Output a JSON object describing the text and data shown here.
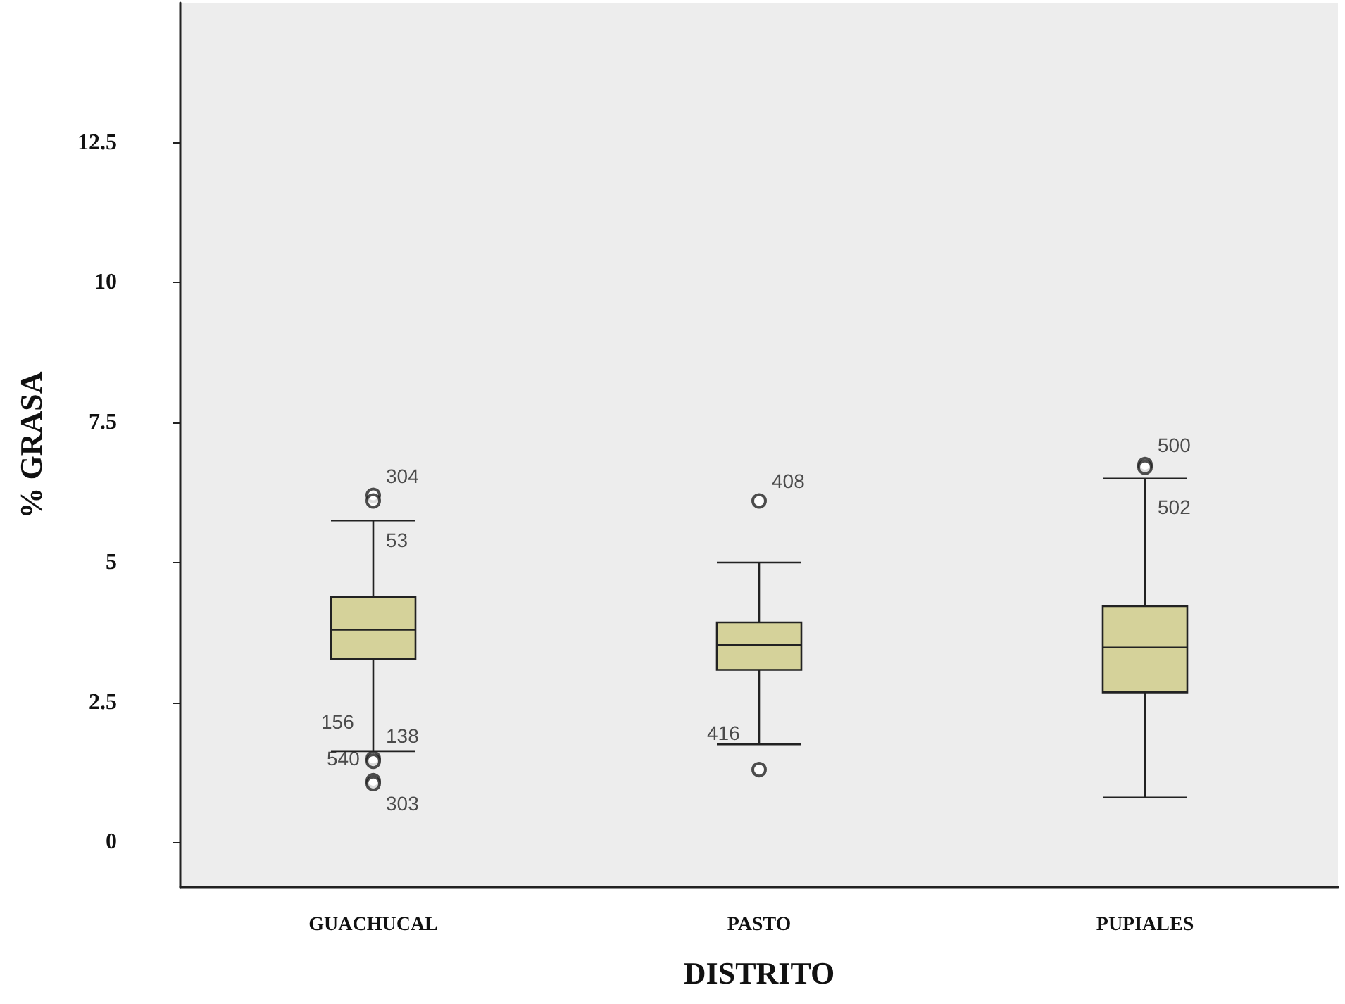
{
  "chart_data": {
    "type": "box",
    "xlabel": "DISTRITO",
    "ylabel": "% GRASA",
    "categories": [
      "GUACHUCAL",
      "PASTO",
      "PUPIALES"
    ],
    "color": "#d5d29a",
    "boxes": [
      {
        "low": 1.63,
        "q1": 3.28,
        "median": 3.8,
        "q3": 4.38,
        "high": 5.75,
        "outliers": [
          6.2,
          6.1,
          1.5,
          1.45,
          1.1,
          1.05
        ]
      },
      {
        "low": 1.75,
        "q1": 3.08,
        "median": 3.53,
        "q3": 3.93,
        "high": 5.0,
        "outliers": [
          6.1,
          1.3
        ]
      },
      {
        "low": 0.8,
        "q1": 2.68,
        "median": 3.48,
        "q3": 4.22,
        "high": 6.5,
        "outliers": [
          6.75,
          6.7
        ]
      }
    ],
    "ylim": [
      -0.8,
      15
    ],
    "yticks": [
      0,
      2.5,
      5,
      7.5,
      10,
      12.5
    ],
    "grid": false,
    "marker": "circle",
    "annotations": [
      "304",
      "53",
      "156",
      "138",
      "540",
      "303",
      "408",
      "416",
      "500",
      "502"
    ]
  }
}
